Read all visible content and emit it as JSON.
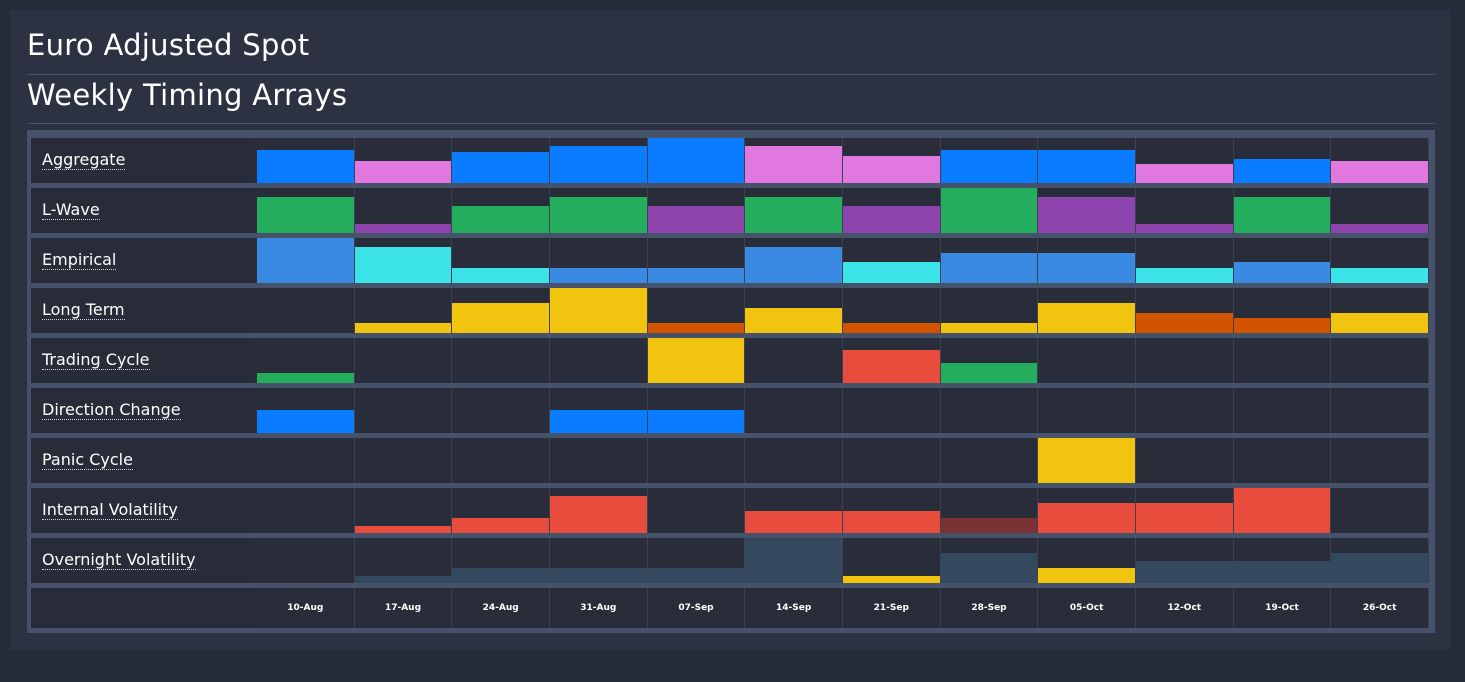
{
  "page": {
    "title": "Euro Adjusted Spot",
    "subtitle": "Weekly Timing Arrays"
  },
  "colors": {
    "blue": "#0a7cff",
    "pink": "#e078e0",
    "green": "#25ad5e",
    "purple": "#8e44ad",
    "steelblue": "#3a8ae4",
    "cyan": "#3ce3e8",
    "yellow": "#f1c40f",
    "orange": "#d35400",
    "red": "#e84c3d",
    "darkred": "#7a3232",
    "slate": "#34495e"
  },
  "chart_data": {
    "type": "heatmap",
    "title": "Weekly Timing Arrays",
    "categories": [
      "10-Aug",
      "17-Aug",
      "24-Aug",
      "31-Aug",
      "07-Sep",
      "14-Sep",
      "21-Sep",
      "28-Sep",
      "05-Oct",
      "12-Oct",
      "19-Oct",
      "26-Oct"
    ],
    "value_scale": [
      0,
      1
    ],
    "series": [
      {
        "name": "Aggregate",
        "values": [
          0.73,
          0.49,
          0.69,
          0.82,
          1.0,
          0.82,
          0.6,
          0.73,
          0.73,
          0.42,
          0.53,
          0.49
        ],
        "colors": [
          "blue",
          "pink",
          "blue",
          "blue",
          "blue",
          "pink",
          "pink",
          "blue",
          "blue",
          "pink",
          "blue",
          "pink"
        ]
      },
      {
        "name": "L-Wave",
        "values": [
          0.8,
          0.2,
          0.6,
          0.8,
          0.6,
          0.8,
          0.6,
          1.0,
          0.8,
          0.2,
          0.8,
          0.2
        ],
        "colors": [
          "green",
          "purple",
          "green",
          "green",
          "purple",
          "green",
          "purple",
          "green",
          "purple",
          "purple",
          "green",
          "purple"
        ]
      },
      {
        "name": "Empirical",
        "values": [
          1.0,
          0.8,
          0.33,
          0.33,
          0.33,
          0.8,
          0.47,
          0.67,
          0.67,
          0.33,
          0.47,
          0.33
        ],
        "colors": [
          "steelblue",
          "cyan",
          "cyan",
          "steelblue",
          "steelblue",
          "steelblue",
          "cyan",
          "steelblue",
          "steelblue",
          "cyan",
          "steelblue",
          "cyan"
        ]
      },
      {
        "name": "Long Term",
        "values": [
          0,
          0.22,
          0.67,
          1.0,
          0.22,
          0.56,
          0.22,
          0.22,
          0.67,
          0.44,
          0.33,
          0.44
        ],
        "colors": [
          "yellow",
          "yellow",
          "yellow",
          "yellow",
          "orange",
          "yellow",
          "orange",
          "yellow",
          "yellow",
          "orange",
          "orange",
          "yellow"
        ]
      },
      {
        "name": "Trading Cycle",
        "values": [
          0.22,
          0,
          0,
          0,
          1.0,
          0,
          0.73,
          0.44,
          0,
          0,
          0,
          0
        ],
        "colors": [
          "green",
          "green",
          "green",
          "green",
          "yellow",
          "green",
          "red",
          "green",
          "green",
          "green",
          "green",
          "green"
        ]
      },
      {
        "name": "Direction Change",
        "values": [
          0.51,
          0,
          0,
          0.51,
          0.51,
          0,
          0,
          0,
          0,
          0,
          0,
          0
        ],
        "colors": [
          "blue",
          "blue",
          "blue",
          "blue",
          "blue",
          "blue",
          "blue",
          "blue",
          "blue",
          "blue",
          "blue",
          "blue"
        ]
      },
      {
        "name": "Panic Cycle",
        "values": [
          0,
          0,
          0,
          0,
          0,
          0,
          0,
          0,
          1.0,
          0,
          0,
          0
        ],
        "colors": [
          "yellow",
          "yellow",
          "yellow",
          "yellow",
          "yellow",
          "yellow",
          "yellow",
          "yellow",
          "yellow",
          "yellow",
          "yellow",
          "yellow"
        ]
      },
      {
        "name": "Internal Volatility",
        "values": [
          0,
          0.16,
          0.33,
          0.82,
          0,
          0.49,
          0.49,
          0.33,
          0.67,
          0.67,
          1.0,
          0
        ],
        "colors": [
          "red",
          "red",
          "red",
          "red",
          "red",
          "red",
          "red",
          "darkred",
          "red",
          "red",
          "red",
          "red"
        ]
      },
      {
        "name": "Overnight Volatility",
        "values": [
          0,
          0.16,
          0.33,
          0.33,
          0.33,
          1.0,
          0.16,
          0.67,
          0.33,
          0.49,
          0.49,
          0.67
        ],
        "colors": [
          "slate",
          "slate",
          "slate",
          "slate",
          "slate",
          "slate",
          "yellow",
          "slate",
          "yellow",
          "slate",
          "slate",
          "slate"
        ]
      }
    ]
  }
}
